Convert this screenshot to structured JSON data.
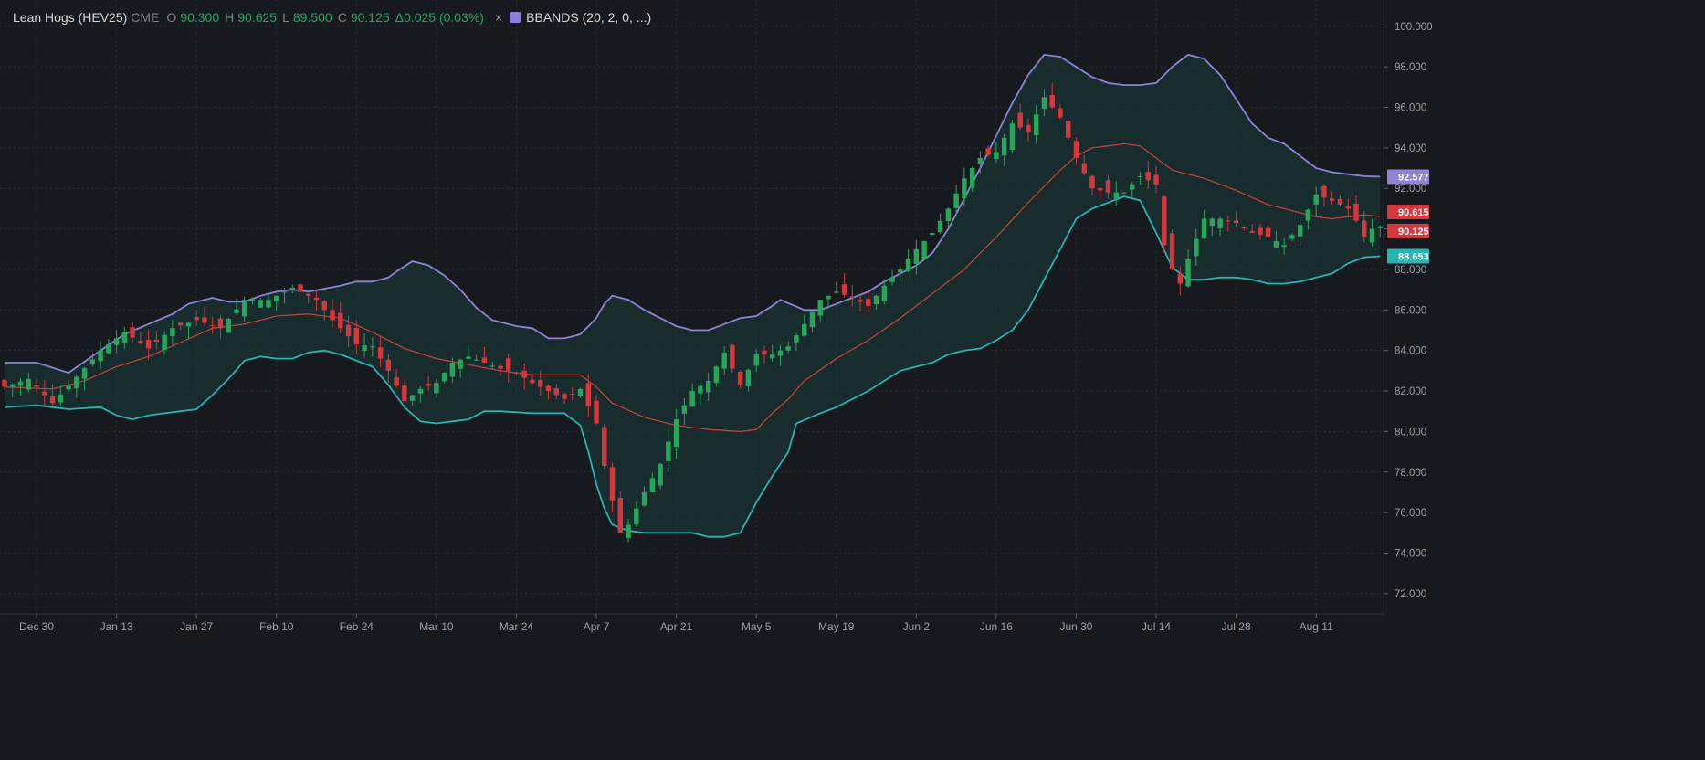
{
  "legend": {
    "symbol": "Lean Hogs (HEV25)",
    "exchange": "CME",
    "open_label": "O",
    "open": "90.300",
    "high_label": "H",
    "high": "90.625",
    "low_label": "L",
    "low": "89.500",
    "close_label": "C",
    "close": "90.125",
    "change": "Δ0.025 (0.03%)",
    "remove_icon": "×",
    "indicator_color": "#8e7ee0",
    "indicator": "BBANDS (20, 2, 0,",
    "more": " ...)"
  },
  "colors": {
    "background": "#161a1f",
    "grid": "#262b32",
    "up": "#26a65b",
    "down": "#d6373c",
    "upper_band": "#8e84d6",
    "middle_band": "#b8443e",
    "lower_band": "#26b5b0",
    "band_fill": "#1b3a39"
  },
  "chart_data": {
    "type": "candlestick",
    "symbol": "Lean Hogs (HEV25)",
    "y_range": [
      71.0,
      101.0
    ],
    "y_ticks": [
      "100.000",
      "98.000",
      "96.000",
      "94.000",
      "92.000",
      "90.000",
      "88.000",
      "86.000",
      "84.000",
      "82.000",
      "80.000",
      "78.000",
      "76.000",
      "74.000",
      "72.000"
    ],
    "x_ticks": [
      "Dec 30",
      "Jan 13",
      "Jan 27",
      "Feb 10",
      "Feb 24",
      "Mar 10",
      "Mar 24",
      "Apr 7",
      "Apr 21",
      "May 5",
      "May 19",
      "Jun 2",
      "Jun 16",
      "Jun 30",
      "Jul 14",
      "Jul 28",
      "Aug 11"
    ],
    "x_tick_sessions": [
      4,
      14,
      24,
      34,
      44,
      54,
      64,
      74,
      84,
      94,
      104,
      114,
      124,
      134,
      144,
      154,
      164
    ],
    "session_count": 173,
    "price_tags": [
      {
        "label": "92.577",
        "value": 92.577,
        "series": "upper"
      },
      {
        "label": "90.615",
        "value": 90.615,
        "series": "middle"
      },
      {
        "label": "90.125",
        "value": 90.125,
        "series": "close"
      },
      {
        "label": "88.653",
        "value": 88.653,
        "series": "lower"
      }
    ],
    "close_keys": [
      [
        0,
        82.2
      ],
      [
        3,
        82.6
      ],
      [
        6,
        81.4
      ],
      [
        9,
        82.7
      ],
      [
        12,
        84.0
      ],
      [
        15,
        84.9
      ],
      [
        18,
        84.1
      ],
      [
        21,
        85.1
      ],
      [
        24,
        85.5
      ],
      [
        27,
        85.1
      ],
      [
        30,
        86.5
      ],
      [
        33,
        86.5
      ],
      [
        36,
        87.1
      ],
      [
        39,
        86.5
      ],
      [
        41,
        85.5
      ],
      [
        44,
        84.3
      ],
      [
        46,
        84.2
      ],
      [
        48,
        83.0
      ],
      [
        50,
        81.5
      ],
      [
        52,
        82.1
      ],
      [
        54,
        82.4
      ],
      [
        56,
        83.4
      ],
      [
        58,
        83.7
      ],
      [
        60,
        83.4
      ],
      [
        62,
        83.1
      ],
      [
        64,
        82.9
      ],
      [
        66,
        82.4
      ],
      [
        68,
        82.0
      ],
      [
        70,
        81.6
      ],
      [
        72,
        82.1
      ],
      [
        74,
        80.4
      ],
      [
        75,
        78.3
      ],
      [
        76,
        76.6
      ],
      [
        77,
        75.0
      ],
      [
        78,
        75.4
      ],
      [
        80,
        77.0
      ],
      [
        82,
        78.4
      ],
      [
        84,
        80.6
      ],
      [
        86,
        82.0
      ],
      [
        88,
        82.5
      ],
      [
        90,
        83.9
      ],
      [
        92,
        82.3
      ],
      [
        94,
        83.8
      ],
      [
        96,
        83.8
      ],
      [
        98,
        84.2
      ],
      [
        100,
        85.3
      ],
      [
        102,
        86.5
      ],
      [
        104,
        86.9
      ],
      [
        106,
        86.6
      ],
      [
        108,
        86.2
      ],
      [
        110,
        87.2
      ],
      [
        112,
        88.0
      ],
      [
        114,
        89.0
      ],
      [
        116,
        89.8
      ],
      [
        118,
        91.0
      ],
      [
        120,
        92.5
      ],
      [
        122,
        93.5
      ],
      [
        124,
        93.8
      ],
      [
        126,
        95.2
      ],
      [
        128,
        94.8
      ],
      [
        130,
        96.5
      ],
      [
        132,
        95.5
      ],
      [
        134,
        93.5
      ],
      [
        136,
        92.0
      ],
      [
        138,
        91.8
      ],
      [
        140,
        91.8
      ],
      [
        142,
        92.6
      ],
      [
        144,
        92.2
      ],
      [
        145,
        89.2
      ],
      [
        146,
        88.0
      ],
      [
        147,
        87.3
      ],
      [
        148,
        88.5
      ],
      [
        150,
        90.5
      ],
      [
        152,
        90.5
      ],
      [
        154,
        90.3
      ],
      [
        156,
        89.8
      ],
      [
        158,
        89.6
      ],
      [
        160,
        89.2
      ],
      [
        162,
        90.2
      ],
      [
        164,
        91.7
      ],
      [
        166,
        91.4
      ],
      [
        168,
        91.0
      ],
      [
        169,
        90.4
      ],
      [
        170,
        89.6
      ],
      [
        171,
        90.0
      ],
      [
        172,
        90.125
      ]
    ],
    "upper_band_keys": [
      [
        0,
        83.4
      ],
      [
        4,
        83.4
      ],
      [
        8,
        82.9
      ],
      [
        12,
        84.0
      ],
      [
        15,
        84.8
      ],
      [
        18,
        85.3
      ],
      [
        21,
        85.8
      ],
      [
        23,
        86.3
      ],
      [
        26,
        86.6
      ],
      [
        28,
        86.4
      ],
      [
        30,
        86.4
      ],
      [
        32,
        86.7
      ],
      [
        34,
        86.9
      ],
      [
        36,
        87.0
      ],
      [
        38,
        86.9
      ],
      [
        42,
        87.2
      ],
      [
        44,
        87.4
      ],
      [
        46,
        87.4
      ],
      [
        48,
        87.6
      ],
      [
        49,
        87.9
      ],
      [
        51,
        88.4
      ],
      [
        53,
        88.2
      ],
      [
        55,
        87.7
      ],
      [
        57,
        87.0
      ],
      [
        59,
        86.1
      ],
      [
        61,
        85.5
      ],
      [
        64,
        85.2
      ],
      [
        66,
        85.1
      ],
      [
        68,
        84.6
      ],
      [
        70,
        84.6
      ],
      [
        72,
        84.8
      ],
      [
        74,
        85.6
      ],
      [
        75,
        86.3
      ],
      [
        76,
        86.7
      ],
      [
        78,
        86.5
      ],
      [
        80,
        86.0
      ],
      [
        82,
        85.6
      ],
      [
        84,
        85.2
      ],
      [
        86,
        85.0
      ],
      [
        88,
        85.0
      ],
      [
        90,
        85.3
      ],
      [
        92,
        85.6
      ],
      [
        94,
        85.7
      ],
      [
        96,
        86.2
      ],
      [
        97,
        86.5
      ],
      [
        100,
        86.0
      ],
      [
        102,
        86.0
      ],
      [
        104,
        86.3
      ],
      [
        106,
        86.6
      ],
      [
        108,
        86.9
      ],
      [
        110,
        87.4
      ],
      [
        112,
        87.8
      ],
      [
        114,
        88.2
      ],
      [
        116,
        88.8
      ],
      [
        118,
        90.0
      ],
      [
        120,
        91.5
      ],
      [
        122,
        93.0
      ],
      [
        124,
        94.6
      ],
      [
        126,
        96.2
      ],
      [
        128,
        97.6
      ],
      [
        130,
        98.6
      ],
      [
        132,
        98.5
      ],
      [
        134,
        98.0
      ],
      [
        136,
        97.5
      ],
      [
        138,
        97.2
      ],
      [
        140,
        97.1
      ],
      [
        142,
        97.1
      ],
      [
        144,
        97.2
      ],
      [
        146,
        98.0
      ],
      [
        148,
        98.6
      ],
      [
        150,
        98.4
      ],
      [
        152,
        97.6
      ],
      [
        154,
        96.4
      ],
      [
        156,
        95.2
      ],
      [
        158,
        94.5
      ],
      [
        160,
        94.2
      ],
      [
        162,
        93.6
      ],
      [
        164,
        93.0
      ],
      [
        166,
        92.8
      ],
      [
        168,
        92.7
      ],
      [
        170,
        92.6
      ],
      [
        172,
        92.577
      ]
    ],
    "middle_band_keys": [
      [
        0,
        82.2
      ],
      [
        6,
        82.1
      ],
      [
        10,
        82.5
      ],
      [
        14,
        83.2
      ],
      [
        18,
        83.7
      ],
      [
        22,
        84.4
      ],
      [
        26,
        85.1
      ],
      [
        30,
        85.3
      ],
      [
        34,
        85.7
      ],
      [
        38,
        85.8
      ],
      [
        42,
        85.6
      ],
      [
        46,
        84.9
      ],
      [
        50,
        84.1
      ],
      [
        54,
        83.6
      ],
      [
        58,
        83.3
      ],
      [
        62,
        83.0
      ],
      [
        66,
        82.8
      ],
      [
        70,
        82.8
      ],
      [
        72,
        82.8
      ],
      [
        74,
        82.2
      ],
      [
        76,
        81.4
      ],
      [
        80,
        80.7
      ],
      [
        84,
        80.3
      ],
      [
        88,
        80.1
      ],
      [
        92,
        80.0
      ],
      [
        94,
        80.1
      ],
      [
        96,
        80.9
      ],
      [
        98,
        81.6
      ],
      [
        100,
        82.5
      ],
      [
        104,
        83.6
      ],
      [
        108,
        84.5
      ],
      [
        112,
        85.6
      ],
      [
        116,
        86.8
      ],
      [
        120,
        88.0
      ],
      [
        124,
        89.6
      ],
      [
        128,
        91.3
      ],
      [
        132,
        92.9
      ],
      [
        134,
        93.6
      ],
      [
        136,
        94.0
      ],
      [
        140,
        94.2
      ],
      [
        142,
        94.1
      ],
      [
        144,
        93.5
      ],
      [
        146,
        92.9
      ],
      [
        150,
        92.5
      ],
      [
        154,
        91.9
      ],
      [
        158,
        91.2
      ],
      [
        162,
        90.8
      ],
      [
        164,
        90.6
      ],
      [
        166,
        90.5
      ],
      [
        168,
        90.6
      ],
      [
        170,
        90.7
      ],
      [
        172,
        90.615
      ]
    ],
    "lower_band_keys": [
      [
        0,
        81.2
      ],
      [
        4,
        81.3
      ],
      [
        8,
        81.1
      ],
      [
        12,
        81.2
      ],
      [
        14,
        80.8
      ],
      [
        16,
        80.6
      ],
      [
        18,
        80.8
      ],
      [
        22,
        81.0
      ],
      [
        24,
        81.1
      ],
      [
        26,
        81.8
      ],
      [
        28,
        82.6
      ],
      [
        30,
        83.5
      ],
      [
        32,
        83.7
      ],
      [
        34,
        83.6
      ],
      [
        36,
        83.6
      ],
      [
        38,
        83.9
      ],
      [
        40,
        84.0
      ],
      [
        42,
        83.8
      ],
      [
        44,
        83.5
      ],
      [
        46,
        83.2
      ],
      [
        48,
        82.3
      ],
      [
        50,
        81.2
      ],
      [
        52,
        80.5
      ],
      [
        54,
        80.4
      ],
      [
        56,
        80.5
      ],
      [
        58,
        80.6
      ],
      [
        60,
        81.0
      ],
      [
        62,
        81.0
      ],
      [
        66,
        80.9
      ],
      [
        70,
        80.9
      ],
      [
        72,
        80.3
      ],
      [
        73,
        79.0
      ],
      [
        74,
        77.4
      ],
      [
        75,
        76.2
      ],
      [
        76,
        75.4
      ],
      [
        78,
        75.1
      ],
      [
        80,
        75.0
      ],
      [
        82,
        75.0
      ],
      [
        84,
        75.0
      ],
      [
        86,
        75.0
      ],
      [
        88,
        74.8
      ],
      [
        90,
        74.8
      ],
      [
        92,
        75.0
      ],
      [
        94,
        76.5
      ],
      [
        96,
        77.8
      ],
      [
        98,
        79.0
      ],
      [
        99,
        80.4
      ],
      [
        102,
        80.9
      ],
      [
        104,
        81.2
      ],
      [
        106,
        81.6
      ],
      [
        108,
        82.0
      ],
      [
        110,
        82.5
      ],
      [
        112,
        83.0
      ],
      [
        114,
        83.2
      ],
      [
        116,
        83.4
      ],
      [
        118,
        83.8
      ],
      [
        120,
        84.0
      ],
      [
        122,
        84.1
      ],
      [
        124,
        84.5
      ],
      [
        126,
        85.0
      ],
      [
        128,
        86.0
      ],
      [
        130,
        87.5
      ],
      [
        132,
        89.0
      ],
      [
        134,
        90.5
      ],
      [
        136,
        91.0
      ],
      [
        138,
        91.3
      ],
      [
        140,
        91.6
      ],
      [
        142,
        91.4
      ],
      [
        144,
        89.8
      ],
      [
        146,
        88.1
      ],
      [
        148,
        87.5
      ],
      [
        150,
        87.5
      ],
      [
        152,
        87.6
      ],
      [
        154,
        87.6
      ],
      [
        156,
        87.5
      ],
      [
        158,
        87.3
      ],
      [
        160,
        87.3
      ],
      [
        162,
        87.4
      ],
      [
        164,
        87.6
      ],
      [
        166,
        87.8
      ],
      [
        168,
        88.3
      ],
      [
        170,
        88.6
      ],
      [
        172,
        88.653
      ]
    ]
  }
}
